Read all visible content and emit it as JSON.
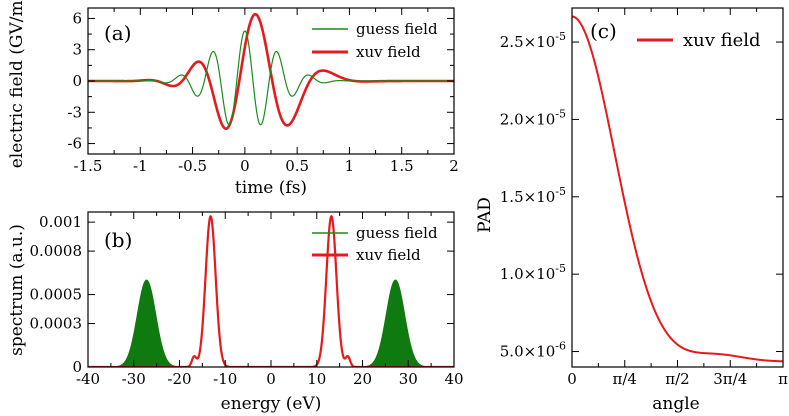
{
  "chart_data": [
    {
      "type": "line",
      "panel_label": "(a)",
      "xlabel": "time (fs)",
      "ylabel": "electric field (GV/m)",
      "xlim": [
        -1.5,
        2
      ],
      "ylim": [
        -7,
        7
      ],
      "xticks": [
        "-1.5",
        "-1",
        "-0.5",
        "0",
        "0.5",
        "1",
        "1.5",
        "2"
      ],
      "yticks": [
        "-6",
        "-3",
        "0",
        "3",
        "6"
      ],
      "legend": "top-right",
      "series": [
        {
          "name": "guess field",
          "color": "#1a8c1a",
          "model": {
            "amplitude": 4.8,
            "center_fs": 0.0,
            "width_fs": 0.42,
            "period_fs": 0.31
          }
        },
        {
          "name": "xuv field",
          "color": "#e41a1c",
          "model": {
            "amplitude": 6.4,
            "center_fs": 0.1,
            "width_fs": 0.5,
            "period_fs": 0.63,
            "chirp": -0.6
          }
        }
      ]
    },
    {
      "type": "line",
      "panel_label": "(b)",
      "xlabel": "energy (eV)",
      "ylabel": "spectrum (a.u.)",
      "xlim": [
        -40,
        40
      ],
      "ylim": [
        0,
        0.00107
      ],
      "xticks": [
        "-40",
        "-30",
        "-20",
        "-10",
        "0",
        "10",
        "20",
        "30",
        "40"
      ],
      "yticks": [
        "0",
        "0.0003",
        "0.0005",
        "0.0008",
        "0.001"
      ],
      "legend": "top-right",
      "series": [
        {
          "name": "guess field",
          "color": "#0f7a0f",
          "filled": true,
          "peaks": [
            {
              "center": -27.2,
              "height": 0.0006,
              "sigma": 2.0
            },
            {
              "center": 27.2,
              "height": 0.0006,
              "sigma": 2.0
            }
          ]
        },
        {
          "name": "xuv field",
          "color": "#e41a1c",
          "peaks": [
            {
              "center": -13.2,
              "height": 0.00104,
              "sigma": 1.1
            },
            {
              "center": 13.2,
              "height": 0.00104,
              "sigma": 1.1
            },
            {
              "center": -16.8,
              "height": 7e-05,
              "sigma": 0.5
            },
            {
              "center": 16.8,
              "height": 7e-05,
              "sigma": 0.5
            }
          ]
        }
      ]
    },
    {
      "type": "line",
      "panel_label": "(c)",
      "xlabel": "angle",
      "ylabel": "PAD",
      "xlim": [
        0,
        3.14159
      ],
      "ylim": [
        4e-06,
        2.72e-05
      ],
      "xticks": [
        "0",
        "π/4",
        "π/2",
        "3π/4",
        "π"
      ],
      "ytick_values": [
        5e-06,
        1e-05,
        1.5e-05,
        2e-05,
        2.5e-05
      ],
      "yticks_mantissa": [
        "5.0",
        "1.0",
        "1.5",
        "2.0",
        "2.5"
      ],
      "yticks_exponent": [
        "-6",
        "-5",
        "-5",
        "-5",
        "-5"
      ],
      "ytick_times": "×10",
      "legend": "top-right",
      "series": [
        {
          "name": "xuv field",
          "color": "#e41a1c",
          "model": {
            "base": 1.55e-05,
            "c1": 1.12e-05,
            "c2": 0.0,
            "c3": -2.2e-06,
            "c4": 0.0
          }
        }
      ]
    }
  ]
}
